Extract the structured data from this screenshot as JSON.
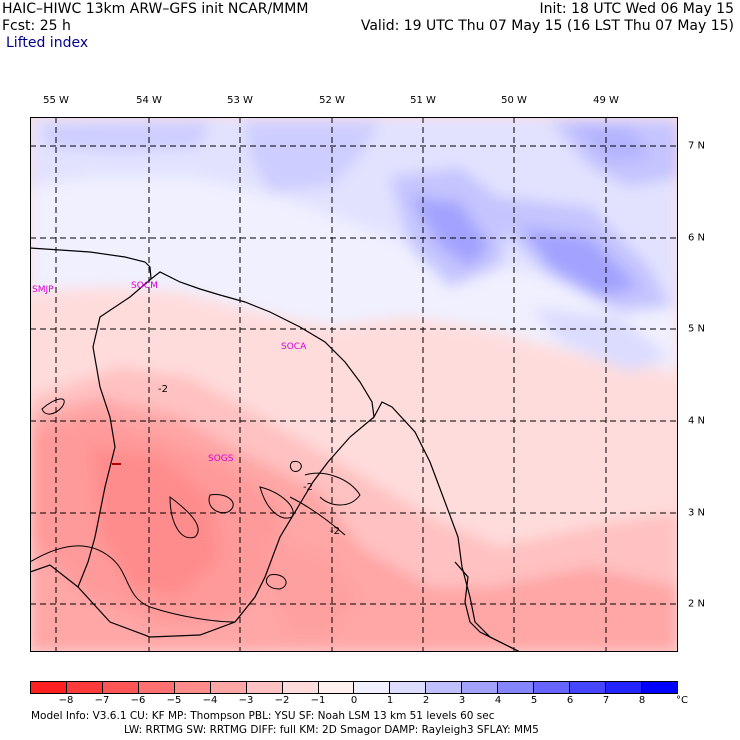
{
  "header": {
    "left_line1": "HAIC–HIWC 13km ARW–GFS init    NCAR/MMM",
    "left_line2": "Fcst:    25 h",
    "field_name": "Lifted index",
    "init": "Init: 18 UTC Wed 06 May 15",
    "valid": "Valid: 19 UTC Thu 07 May 15 (16 LST Thu 07 May 15)"
  },
  "map": {
    "lon_labels": [
      "55 W",
      "54 W",
      "53 W",
      "52 W",
      "51 W",
      "50 W",
      "49 W"
    ],
    "lat_labels": [
      "7 N",
      "6 N",
      "5 N",
      "4 N",
      "3 N",
      "2 N"
    ],
    "sites": [
      "SMJP",
      "SOCM",
      "SOCA",
      "SOGS"
    ],
    "contour_labels": [
      "-2",
      "-2",
      "-2"
    ],
    "grid_style": "dashed"
  },
  "colorbar": {
    "ticks": [
      "−8",
      "−7",
      "−6",
      "−5",
      "−4",
      "−3",
      "−2",
      "−1",
      "0",
      "1",
      "2",
      "3",
      "4",
      "5",
      "6",
      "7",
      "8"
    ],
    "unit": "°C",
    "colors": [
      "#ff2020",
      "#ff3a3a",
      "#ff5555",
      "#ff7070",
      "#ff8c8c",
      "#ffa6a6",
      "#ffc1c1",
      "#ffdcdc",
      "#fff0f0",
      "#f0f0ff",
      "#dcdcff",
      "#c0c0ff",
      "#a3a3ff",
      "#8585ff",
      "#6666ff",
      "#4646ff",
      "#2424ff",
      "#0000ff"
    ]
  },
  "footer": {
    "line1": "Model Info: V3.6.1    CU: KF       MP: Thompson     PBL: YSU       SF: Noah LSM      13 km    51 levels   60 sec",
    "line2": "LW: RRTMG     SW: RRTMG   DIFF: full     KM: 2D Smagor DAMP: Rayleigh3  SFLAY: MM5"
  }
}
